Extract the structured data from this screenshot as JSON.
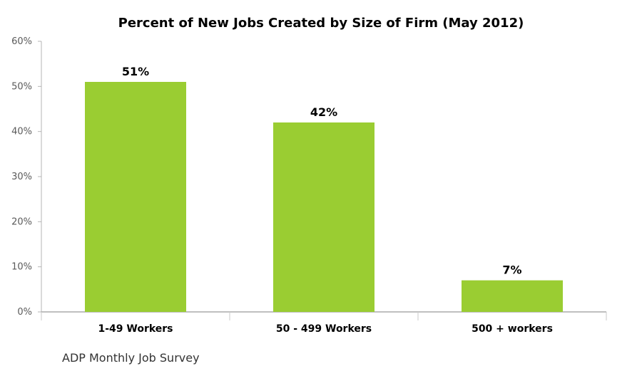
{
  "chart_data": {
    "type": "bar",
    "title": "Percent of New Jobs Created by Size of Firm (May 2012)",
    "categories": [
      "1-49 Workers",
      "50 - 499 Workers",
      "500 + workers"
    ],
    "values": [
      51,
      42,
      7
    ],
    "value_labels": [
      "51%",
      "42%",
      "7%"
    ],
    "ylim": [
      0,
      60
    ],
    "yticks": [
      0,
      10,
      20,
      30,
      40,
      50,
      60
    ],
    "ytick_labels": [
      "0%",
      "10%",
      "20%",
      "30%",
      "40%",
      "50%",
      "60%"
    ],
    "xlabel": "",
    "ylabel": "",
    "grid": false,
    "legend": "none",
    "bar_color": "#9ACD32",
    "source": "ADP Monthly Job Survey"
  }
}
